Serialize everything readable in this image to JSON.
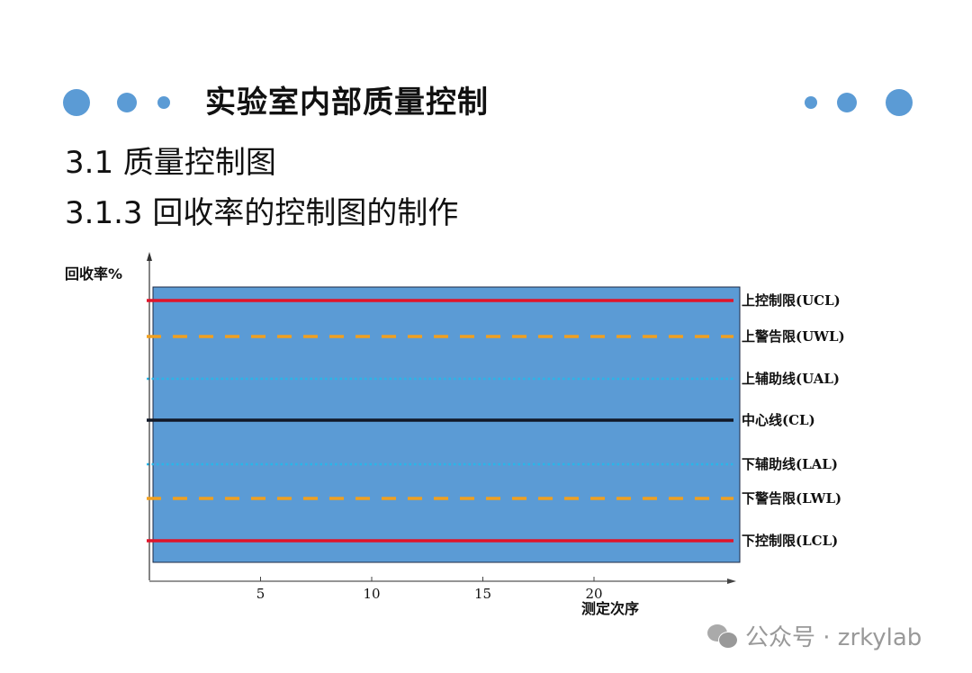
{
  "slide": {
    "title": "实验室内部质量控制",
    "heading1": "3.1  质量控制图",
    "heading2": "3.1.3 回收率的控制图的制作",
    "accent_color": "#5b9bd5"
  },
  "diagram": {
    "y_axis_label": "回收率%",
    "x_axis_label": "测定次序",
    "x_ticks": [
      5,
      10,
      15,
      20
    ],
    "plot_background": "#5b9bd5",
    "lines": [
      {
        "label": "上控制限(UCL)",
        "color": "#e0142a",
        "style": "solid"
      },
      {
        "label": "上警告限(UWL)",
        "color": "#f0a020",
        "style": "dashed"
      },
      {
        "label": "上辅助线(UAL)",
        "color": "#29b6e8",
        "style": "dotted"
      },
      {
        "label": "中心线(CL)",
        "color": "#111827",
        "style": "solid"
      },
      {
        "label": "下辅助线(LAL)",
        "color": "#29b6e8",
        "style": "dotted"
      },
      {
        "label": "下警告限(LWL)",
        "color": "#f0a020",
        "style": "dashed"
      },
      {
        "label": "下控制限(LCL)",
        "color": "#e0142a",
        "style": "solid"
      }
    ]
  },
  "watermark": {
    "text": "公众号 · zrkylab",
    "icon": "wechat-icon"
  }
}
